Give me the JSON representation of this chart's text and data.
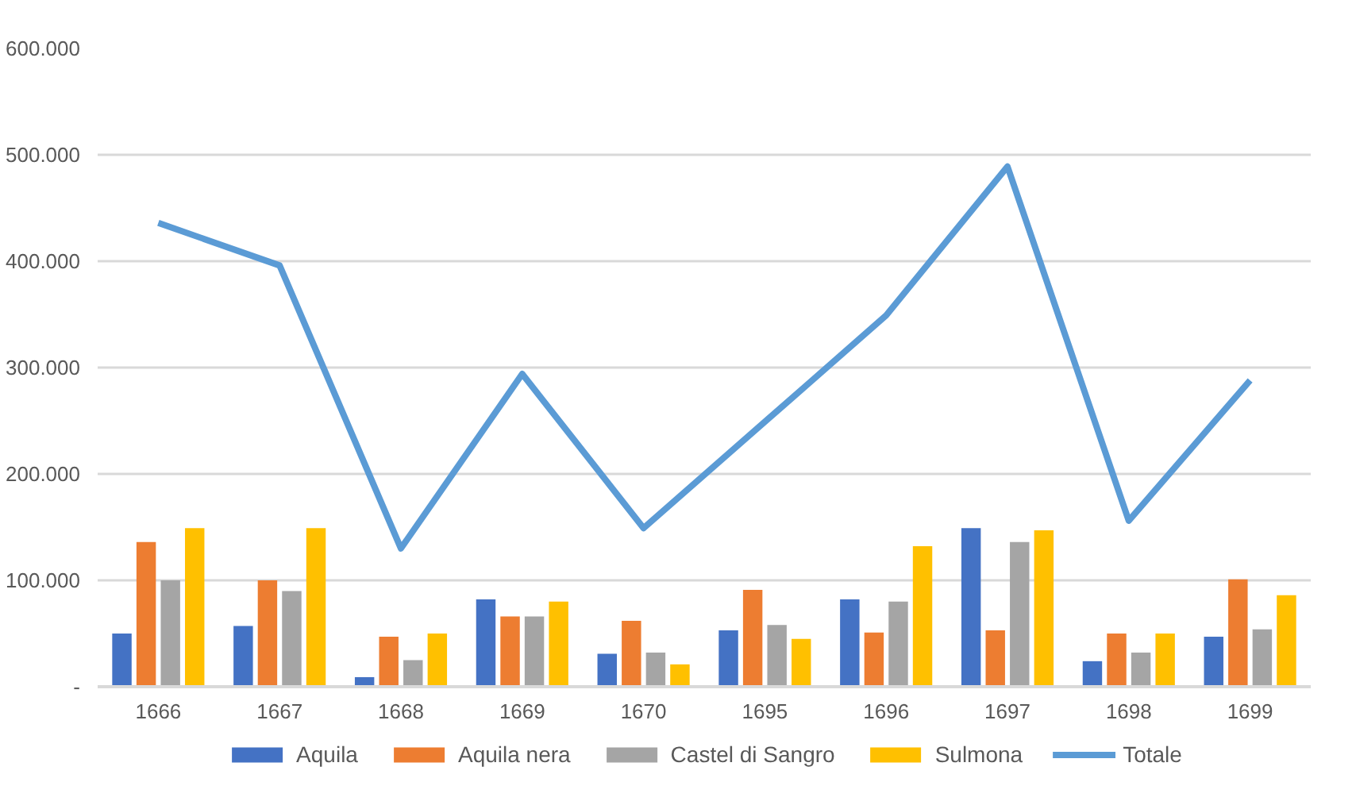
{
  "chart_data": {
    "type": "bar",
    "categories": [
      "1666",
      "1667",
      "1668",
      "1669",
      "1670",
      "1695",
      "1696",
      "1697",
      "1698",
      "1699"
    ],
    "series": [
      {
        "name": "Aquila",
        "color": "#4472c4",
        "values": [
          50000,
          57000,
          9000,
          82000,
          31000,
          53000,
          82000,
          149000,
          24000,
          47000
        ]
      },
      {
        "name": "Aquila nera",
        "color": "#ed7d31",
        "values": [
          136000,
          100000,
          47000,
          66000,
          62000,
          91000,
          51000,
          53000,
          50000,
          101000
        ]
      },
      {
        "name": "Castel di Sangro",
        "color": "#a5a5a5",
        "values": [
          100000,
          90000,
          25000,
          66000,
          32000,
          58000,
          80000,
          136000,
          32000,
          54000
        ]
      },
      {
        "name": "Sulmona",
        "color": "#ffc000",
        "values": [
          149000,
          149000,
          50000,
          80000,
          21000,
          45000,
          132000,
          147000,
          50000,
          86000
        ]
      },
      {
        "name": "Totale",
        "type": "line",
        "color": "#5b9bd5",
        "values": [
          436000,
          396000,
          130000,
          294000,
          149000,
          249000,
          349000,
          489000,
          156000,
          288000
        ]
      }
    ],
    "ylim": [
      0,
      600000
    ],
    "yticks": [
      {
        "value": 0,
        "label": "-"
      },
      {
        "value": 100000,
        "label": "100.000"
      },
      {
        "value": 200000,
        "label": "200.000"
      },
      {
        "value": 300000,
        "label": "300.000"
      },
      {
        "value": 400000,
        "label": "400.000"
      },
      {
        "value": 500000,
        "label": "500.000"
      },
      {
        "value": 600000,
        "label": "600.000"
      }
    ],
    "grid": "y",
    "legend": "bottom"
  }
}
